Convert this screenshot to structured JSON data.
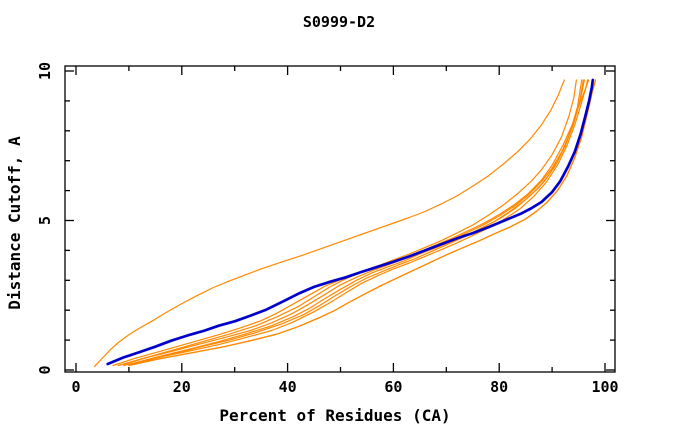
{
  "title": "S0999-D2",
  "colors": {
    "model_line": "#ff8800",
    "reference_line": "#0000cc",
    "frame": "#000000",
    "background": "#ffffff"
  },
  "chart_data": {
    "type": "line",
    "title": "S0999-D2",
    "xlabel": "Percent of Residues (CA)",
    "ylabel": "Distance Cutoff, A",
    "xlim": [
      0,
      100
    ],
    "ylim": [
      0,
      10
    ],
    "grid": false,
    "legend": null,
    "xticks_major": [
      0,
      20,
      40,
      60,
      80,
      100
    ],
    "xticks_minor": [
      10,
      30,
      50,
      70,
      90
    ],
    "yticks_major": [
      0,
      5,
      10
    ],
    "yticks_minor": [
      1,
      2,
      3,
      4,
      6,
      7,
      8,
      9
    ],
    "series": [
      {
        "name": "model-curve-1",
        "color": "#ff8800",
        "width": 1.2,
        "points": [
          [
            3.5,
            0.12
          ],
          [
            5,
            0.4
          ],
          [
            6.5,
            0.68
          ],
          [
            8,
            0.92
          ],
          [
            10,
            1.18
          ],
          [
            12,
            1.4
          ],
          [
            14.5,
            1.65
          ],
          [
            17,
            1.92
          ],
          [
            20,
            2.22
          ],
          [
            23,
            2.5
          ],
          [
            26,
            2.76
          ],
          [
            29,
            2.98
          ],
          [
            32,
            3.18
          ],
          [
            35,
            3.38
          ],
          [
            39,
            3.62
          ],
          [
            43,
            3.85
          ],
          [
            47,
            4.1
          ],
          [
            51,
            4.35
          ],
          [
            55,
            4.6
          ],
          [
            59,
            4.85
          ],
          [
            63,
            5.1
          ],
          [
            66,
            5.3
          ],
          [
            69,
            5.55
          ],
          [
            72,
            5.82
          ],
          [
            75,
            6.15
          ],
          [
            78,
            6.5
          ],
          [
            81,
            6.92
          ],
          [
            83.5,
            7.3
          ],
          [
            86,
            7.75
          ],
          [
            88,
            8.2
          ],
          [
            89.8,
            8.7
          ],
          [
            91.2,
            9.2
          ],
          [
            92.3,
            9.7
          ]
        ]
      },
      {
        "name": "model-curve-2",
        "color": "#ff8800",
        "width": 1.2,
        "points": [
          [
            9,
            0.18
          ],
          [
            14,
            0.45
          ],
          [
            19,
            0.7
          ],
          [
            24,
            0.95
          ],
          [
            29,
            1.2
          ],
          [
            34,
            1.48
          ],
          [
            38,
            1.78
          ],
          [
            42,
            2.12
          ],
          [
            45,
            2.45
          ],
          [
            48,
            2.78
          ],
          [
            51,
            3.05
          ],
          [
            54,
            3.28
          ],
          [
            57,
            3.48
          ],
          [
            60,
            3.68
          ],
          [
            63,
            3.88
          ],
          [
            66,
            4.1
          ],
          [
            69,
            4.32
          ],
          [
            72,
            4.58
          ],
          [
            75,
            4.85
          ],
          [
            78,
            5.18
          ],
          [
            81,
            5.55
          ],
          [
            83.5,
            5.9
          ],
          [
            86,
            6.3
          ],
          [
            88,
            6.7
          ],
          [
            90,
            7.2
          ],
          [
            91.8,
            7.8
          ],
          [
            93.2,
            8.5
          ],
          [
            94.1,
            9.1
          ],
          [
            94.6,
            9.7
          ]
        ]
      },
      {
        "name": "model-curve-3",
        "color": "#ff8800",
        "width": 1.2,
        "points": [
          [
            8,
            0.15
          ],
          [
            13,
            0.4
          ],
          [
            18,
            0.62
          ],
          [
            23,
            0.85
          ],
          [
            28,
            1.08
          ],
          [
            33,
            1.32
          ],
          [
            37,
            1.58
          ],
          [
            41,
            1.9
          ],
          [
            44,
            2.2
          ],
          [
            47,
            2.52
          ],
          [
            50,
            2.85
          ],
          [
            53,
            3.1
          ],
          [
            56,
            3.32
          ],
          [
            59,
            3.52
          ],
          [
            62,
            3.72
          ],
          [
            65,
            3.92
          ],
          [
            68,
            4.12
          ],
          [
            71,
            4.35
          ],
          [
            74,
            4.6
          ],
          [
            77,
            4.85
          ],
          [
            80,
            5.15
          ],
          [
            83,
            5.5
          ],
          [
            85.5,
            5.85
          ],
          [
            88,
            6.3
          ],
          [
            90,
            6.75
          ],
          [
            92,
            7.35
          ],
          [
            93.5,
            8.0
          ],
          [
            94.8,
            8.8
          ],
          [
            95.6,
            9.7
          ]
        ]
      },
      {
        "name": "model-curve-4",
        "color": "#ff8800",
        "width": 1.2,
        "points": [
          [
            10,
            0.18
          ],
          [
            15,
            0.42
          ],
          [
            21,
            0.68
          ],
          [
            27,
            0.95
          ],
          [
            32,
            1.2
          ],
          [
            37,
            1.48
          ],
          [
            41,
            1.78
          ],
          [
            44,
            2.05
          ],
          [
            47,
            2.38
          ],
          [
            50,
            2.7
          ],
          [
            53,
            3.0
          ],
          [
            56,
            3.25
          ],
          [
            59,
            3.45
          ],
          [
            62,
            3.65
          ],
          [
            65,
            3.88
          ],
          [
            68,
            4.08
          ],
          [
            71,
            4.3
          ],
          [
            74,
            4.52
          ],
          [
            77,
            4.78
          ],
          [
            80,
            5.05
          ],
          [
            83,
            5.4
          ],
          [
            86,
            5.85
          ],
          [
            88.5,
            6.3
          ],
          [
            90.5,
            6.8
          ],
          [
            92.5,
            7.5
          ],
          [
            94,
            8.2
          ],
          [
            95.3,
            9.0
          ],
          [
            96.1,
            9.7
          ]
        ]
      },
      {
        "name": "model-curve-5",
        "color": "#ff8800",
        "width": 1.2,
        "points": [
          [
            7,
            0.15
          ],
          [
            11,
            0.38
          ],
          [
            15,
            0.58
          ],
          [
            19,
            0.78
          ],
          [
            23,
            0.98
          ],
          [
            27,
            1.18
          ],
          [
            31,
            1.4
          ],
          [
            35,
            1.65
          ],
          [
            38,
            1.9
          ],
          [
            41,
            2.2
          ],
          [
            44,
            2.5
          ],
          [
            47,
            2.8
          ],
          [
            50,
            3.02
          ],
          [
            53,
            3.22
          ],
          [
            56,
            3.4
          ],
          [
            59,
            3.58
          ],
          [
            62,
            3.75
          ],
          [
            65,
            3.95
          ],
          [
            68,
            4.18
          ],
          [
            71,
            4.4
          ],
          [
            74,
            4.65
          ],
          [
            77,
            4.9
          ],
          [
            80,
            5.2
          ],
          [
            83,
            5.55
          ],
          [
            85.5,
            5.9
          ],
          [
            88,
            6.35
          ],
          [
            90,
            6.85
          ],
          [
            92,
            7.5
          ],
          [
            93.8,
            8.2
          ],
          [
            95.2,
            8.9
          ],
          [
            96.3,
            9.4
          ],
          [
            96.9,
            9.7
          ]
        ]
      },
      {
        "name": "model-curve-6",
        "color": "#ff8800",
        "width": 1.2,
        "points": [
          [
            11,
            0.2
          ],
          [
            17,
            0.48
          ],
          [
            23,
            0.75
          ],
          [
            29,
            1.0
          ],
          [
            34,
            1.25
          ],
          [
            39,
            1.55
          ],
          [
            43,
            1.85
          ],
          [
            46,
            2.15
          ],
          [
            49,
            2.48
          ],
          [
            52,
            2.8
          ],
          [
            55,
            3.08
          ],
          [
            58,
            3.3
          ],
          [
            61,
            3.52
          ],
          [
            64,
            3.72
          ],
          [
            67,
            3.95
          ],
          [
            70,
            4.18
          ],
          [
            73,
            4.42
          ],
          [
            76,
            4.68
          ],
          [
            79,
            4.95
          ],
          [
            82,
            5.3
          ],
          [
            85,
            5.7
          ],
          [
            87.5,
            6.1
          ],
          [
            89.5,
            6.55
          ],
          [
            91.5,
            7.15
          ],
          [
            93,
            7.75
          ],
          [
            94.3,
            8.4
          ],
          [
            95.3,
            9.05
          ],
          [
            95.9,
            9.7
          ]
        ]
      },
      {
        "name": "model-curve-7",
        "color": "#ff8800",
        "width": 1.2,
        "points": [
          [
            9,
            0.15
          ],
          [
            15,
            0.4
          ],
          [
            21,
            0.62
          ],
          [
            27,
            0.85
          ],
          [
            32,
            1.08
          ],
          [
            37,
            1.32
          ],
          [
            41,
            1.6
          ],
          [
            45,
            1.95
          ],
          [
            48,
            2.25
          ],
          [
            51,
            2.58
          ],
          [
            54,
            2.9
          ],
          [
            57,
            3.15
          ],
          [
            60,
            3.38
          ],
          [
            63,
            3.58
          ],
          [
            66,
            3.8
          ],
          [
            69,
            4.02
          ],
          [
            72,
            4.25
          ],
          [
            75,
            4.5
          ],
          [
            78,
            4.75
          ],
          [
            81,
            5.05
          ],
          [
            84,
            5.4
          ],
          [
            86.5,
            5.8
          ],
          [
            89,
            6.3
          ],
          [
            91,
            6.85
          ],
          [
            92.8,
            7.5
          ],
          [
            94.3,
            8.2
          ],
          [
            95.5,
            8.9
          ],
          [
            96.4,
            9.45
          ],
          [
            96.7,
            9.7
          ]
        ]
      },
      {
        "name": "model-curve-8",
        "color": "#ff8800",
        "width": 1.4,
        "points": [
          [
            10,
            0.15
          ],
          [
            16,
            0.38
          ],
          [
            22,
            0.58
          ],
          [
            28,
            0.78
          ],
          [
            33,
            0.98
          ],
          [
            38,
            1.2
          ],
          [
            42,
            1.45
          ],
          [
            46,
            1.75
          ],
          [
            49,
            2.0
          ],
          [
            52,
            2.3
          ],
          [
            55,
            2.58
          ],
          [
            58,
            2.85
          ],
          [
            61,
            3.1
          ],
          [
            64,
            3.35
          ],
          [
            67,
            3.6
          ],
          [
            70,
            3.85
          ],
          [
            73,
            4.08
          ],
          [
            76,
            4.3
          ],
          [
            79,
            4.55
          ],
          [
            82,
            4.78
          ],
          [
            85,
            5.05
          ],
          [
            87,
            5.3
          ],
          [
            89,
            5.6
          ],
          [
            91,
            6.0
          ],
          [
            92.8,
            6.5
          ],
          [
            94.3,
            7.1
          ],
          [
            95.6,
            7.8
          ],
          [
            96.7,
            8.6
          ],
          [
            97.6,
            9.3
          ],
          [
            98.2,
            9.7
          ]
        ]
      },
      {
        "name": "reference-curve",
        "color": "#0000cc",
        "width": 2.7,
        "points": [
          [
            6,
            0.2
          ],
          [
            9,
            0.42
          ],
          [
            12,
            0.6
          ],
          [
            15,
            0.78
          ],
          [
            18,
            0.98
          ],
          [
            21,
            1.15
          ],
          [
            24,
            1.3
          ],
          [
            27,
            1.48
          ],
          [
            30,
            1.63
          ],
          [
            33,
            1.82
          ],
          [
            36,
            2.02
          ],
          [
            39,
            2.28
          ],
          [
            42,
            2.55
          ],
          [
            45,
            2.78
          ],
          [
            48,
            2.95
          ],
          [
            51,
            3.1
          ],
          [
            54,
            3.28
          ],
          [
            57,
            3.45
          ],
          [
            60,
            3.62
          ],
          [
            63,
            3.8
          ],
          [
            66,
            4.0
          ],
          [
            69,
            4.2
          ],
          [
            72,
            4.4
          ],
          [
            75,
            4.58
          ],
          [
            78,
            4.78
          ],
          [
            81,
            5.0
          ],
          [
            84,
            5.22
          ],
          [
            86,
            5.4
          ],
          [
            88,
            5.62
          ],
          [
            90,
            5.95
          ],
          [
            91.5,
            6.3
          ],
          [
            93,
            6.8
          ],
          [
            94.3,
            7.3
          ],
          [
            95.4,
            7.9
          ],
          [
            96.3,
            8.5
          ],
          [
            97,
            9.0
          ],
          [
            97.5,
            9.45
          ],
          [
            97.7,
            9.7
          ]
        ]
      }
    ]
  }
}
